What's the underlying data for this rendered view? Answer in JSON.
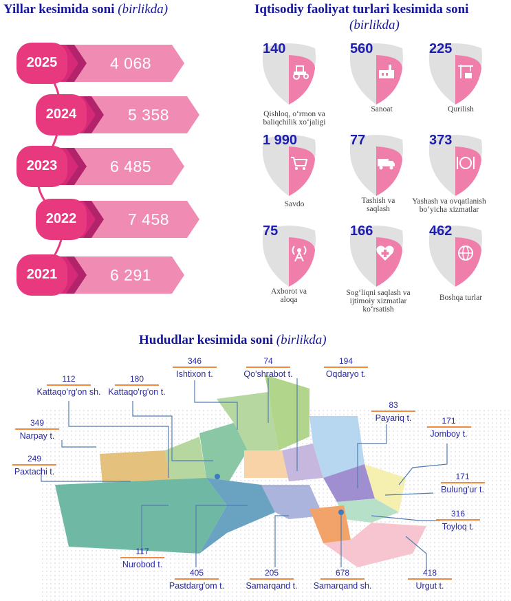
{
  "years_section": {
    "title": "Yillar kesimida soni",
    "unit": "(birlikda)"
  },
  "years": [
    {
      "year": "2025",
      "value": "4 068"
    },
    {
      "year": "2024",
      "value": "5 358"
    },
    {
      "year": "2023",
      "value": "6 485"
    },
    {
      "year": "2022",
      "value": "7 458"
    },
    {
      "year": "2021",
      "value": "6 291"
    }
  ],
  "sectors_section": {
    "title": "Iqtisodiy faoliyat turlari kesimida soni",
    "unit": "(birlikda)"
  },
  "sectors": [
    {
      "value": "140",
      "label": "Qishloq, o‘rmon va baliqchilik xo‘jaligi",
      "icon": "tractor-icon"
    },
    {
      "value": "560",
      "label": "Sanoat",
      "icon": "factory-icon"
    },
    {
      "value": "225",
      "label": "Qurilish",
      "icon": "crane-icon"
    },
    {
      "value": "1 990",
      "label": "Savdo",
      "icon": "cart-icon"
    },
    {
      "value": "77",
      "label": "Tashish va saqlash",
      "icon": "truck-icon"
    },
    {
      "value": "373",
      "label": "Yashash va ovqatlanish bo‘yicha xizmatlar",
      "icon": "dining-icon"
    },
    {
      "value": "75",
      "label": "Axborot va aloqa",
      "icon": "antenna-icon"
    },
    {
      "value": "166",
      "label": "Sog‘liqni saqlash va ijtimoiy xizmatlar ko‘rsatish",
      "icon": "health-icon"
    },
    {
      "value": "462",
      "label": "Boshqa turlar",
      "icon": "globe-icon"
    }
  ],
  "regions_section": {
    "title": "Hududlar kesimida soni",
    "unit": "(birlikda)"
  },
  "regions": [
    {
      "value": "112",
      "name": "Kattaqo'rg'on sh."
    },
    {
      "value": "180",
      "name": "Kattaqo'rg'on t."
    },
    {
      "value": "346",
      "name": "Ishtixon t."
    },
    {
      "value": "74",
      "name": "Qo'shrabot t."
    },
    {
      "value": "194",
      "name": "Oqdaryo t."
    },
    {
      "value": "83",
      "name": "Payariq t."
    },
    {
      "value": "171",
      "name": "Jomboy t."
    },
    {
      "value": "349",
      "name": "Narpay t."
    },
    {
      "value": "249",
      "name": "Paxtachi t."
    },
    {
      "value": "171",
      "name": "Bulung'ur t."
    },
    {
      "value": "316",
      "name": "Toyloq t."
    },
    {
      "value": "117",
      "name": "Nurobod t."
    },
    {
      "value": "405",
      "name": "Pastdarg'om t."
    },
    {
      "value": "205",
      "name": "Samarqand t."
    },
    {
      "value": "678",
      "name": "Samarqand sh."
    },
    {
      "value": "418",
      "name": "Urgut t."
    }
  ],
  "colors": {
    "title": "#16169a",
    "pink": "#e8397f",
    "light_pink": "#f08cb3",
    "accent": "#f08a3c"
  }
}
